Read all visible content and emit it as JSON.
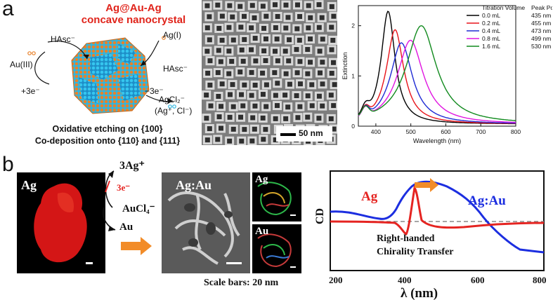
{
  "panel_a": {
    "letter": "a",
    "title_line1": "Ag@Au-Ag",
    "title_line2": "concave nanocrystal",
    "labels": {
      "hasc_top": "HAsc⁻",
      "ag_i": "Ag(I)",
      "au_iii": "Au(III)",
      "plus3e": "+3e⁻",
      "hasc_right": "HAsc⁻",
      "minus3e": "−3e⁻",
      "agcl2": "AgCl₂⁻",
      "ag_cl": "(Ag⁺, Cl⁻)"
    },
    "caption_line1": "Oxidative etching on {100}",
    "caption_line2": "Co-deposition onto {110} and {111}",
    "scale_bar": "50 nm"
  },
  "panel_b": {
    "letter": "b",
    "ag_label": "Ag",
    "reaction": {
      "product": "3Ag⁺",
      "electrons": "3e⁻",
      "reactant": "AuCl₄⁻",
      "au": "Au"
    },
    "agau_label": "Ag:Au",
    "map_ag": "Ag",
    "map_au": "Au",
    "scale_note": "Scale bars: 20 nm",
    "cd": {
      "ylabel": "CD",
      "xlabel": "λ (nm)",
      "ag_series": "Ag",
      "agau_series": "Ag:Au",
      "note_line1": "Right-handed",
      "note_line2": "Chirality Transfer",
      "xticks": [
        "200",
        "400",
        "600",
        "800"
      ]
    }
  },
  "chart_data": {
    "type": "line",
    "xlabel": "Wavelength (nm)",
    "ylabel": "Extinction",
    "xlim": [
      350,
      800
    ],
    "ylim": [
      0,
      2.4
    ],
    "xticks": [
      400,
      500,
      600,
      700,
      800
    ],
    "yticks": [
      0,
      1,
      2
    ],
    "legend_title": "Titration Volume",
    "legend_title2": "Peak Position",
    "legend_position": "top-right",
    "series": [
      {
        "name": "0.0 mL",
        "peak": "435 nm",
        "color": "#000000",
        "peak_nm": 435,
        "height": 2.25,
        "width": 24
      },
      {
        "name": "0.2 mL",
        "peak": "455 nm",
        "color": "#e8141b",
        "peak_nm": 455,
        "height": 1.88,
        "width": 30
      },
      {
        "name": "0.4 mL",
        "peak": "473 nm",
        "color": "#1f2bd4",
        "peak_nm": 473,
        "height": 1.62,
        "width": 38
      },
      {
        "name": "0.8 mL",
        "peak": "499 nm",
        "color": "#e015e0",
        "peak_nm": 499,
        "height": 1.67,
        "width": 45
      },
      {
        "name": "1.6 mL",
        "peak": "530 nm",
        "color": "#118a1e",
        "peak_nm": 530,
        "height": 1.96,
        "width": 52
      }
    ]
  },
  "colors": {
    "title_red": "#e0241b",
    "arrow_orange": "#f28c28",
    "ag_red": "#e52421",
    "agau_blue": "#1c2ee0"
  }
}
